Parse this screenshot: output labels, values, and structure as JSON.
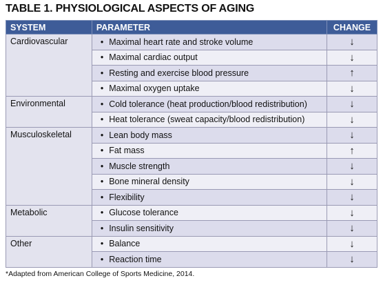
{
  "title": "TABLE 1. PHYSIOLOGICAL ASPECTS OF AGING",
  "table": {
    "header": [
      "SYSTEM",
      "PARAMETER",
      "CHANGE"
    ],
    "groups": [
      {
        "system": "Cardiovascular",
        "items": [
          {
            "parameter": "Maximal heart rate and stroke volume",
            "change": "↓"
          },
          {
            "parameter": "Maximal cardiac output",
            "change": "↓"
          },
          {
            "parameter": "Resting and exercise blood pressure",
            "change": "↑"
          },
          {
            "parameter": "Maximal oxygen uptake",
            "change": "↓"
          }
        ]
      },
      {
        "system": "Environmental",
        "items": [
          {
            "parameter": "Cold tolerance (heat production/blood redistribution)",
            "change": "↓"
          },
          {
            "parameter": "Heat tolerance (sweat capacity/blood redistribution)",
            "change": "↓"
          }
        ]
      },
      {
        "system": "Musculoskeletal",
        "items": [
          {
            "parameter": "Lean body mass",
            "change": "↓"
          },
          {
            "parameter": "Fat mass",
            "change": "↑"
          },
          {
            "parameter": "Muscle strength",
            "change": "↓"
          },
          {
            "parameter": "Bone mineral density",
            "change": "↓"
          },
          {
            "parameter": "Flexibility",
            "change": "↓"
          }
        ]
      },
      {
        "system": "Metabolic",
        "items": [
          {
            "parameter": "Glucose tolerance",
            "change": "↓"
          },
          {
            "parameter": "Insulin sensitivity",
            "change": "↓"
          }
        ]
      },
      {
        "system": "Other",
        "items": [
          {
            "parameter": "Balance",
            "change": "↓"
          },
          {
            "parameter": "Reaction time",
            "change": "↓"
          }
        ]
      }
    ]
  },
  "footnote": "*Adapted from American College of Sports Medicine, 2014."
}
